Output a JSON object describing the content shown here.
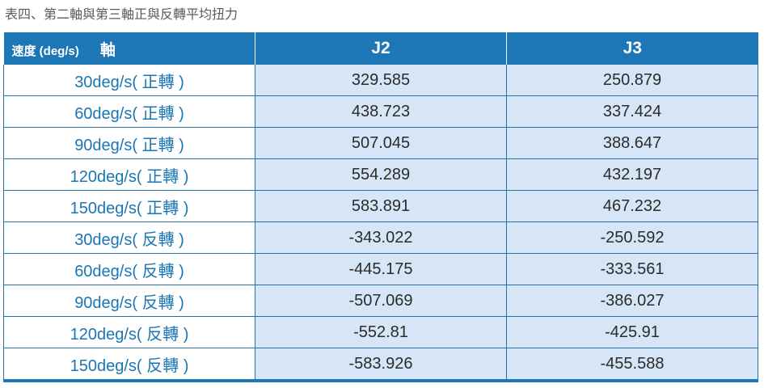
{
  "caption": "表四、第二軸與第三軸正與反轉平均扭力",
  "table": {
    "header": {
      "speed_label": "速度 (deg/s)",
      "axis_label": "軸",
      "j2": "J2",
      "j3": "J3"
    },
    "rows": [
      {
        "speed": "30deg/s( 正轉 )",
        "j2": "329.585",
        "j3": "250.879"
      },
      {
        "speed": "60deg/s( 正轉 )",
        "j2": "438.723",
        "j3": "337.424"
      },
      {
        "speed": "90deg/s( 正轉 )",
        "j2": "507.045",
        "j3": "388.647"
      },
      {
        "speed": "120deg/s( 正轉 )",
        "j2": "554.289",
        "j3": "432.197"
      },
      {
        "speed": "150deg/s( 正轉 )",
        "j2": "583.891",
        "j3": "467.232"
      },
      {
        "speed": "30deg/s( 反轉 )",
        "j2": "-343.022",
        "j3": "-250.592"
      },
      {
        "speed": "60deg/s( 反轉 )",
        "j2": "-445.175",
        "j3": "-333.561"
      },
      {
        "speed": "90deg/s( 反轉 )",
        "j2": "-507.069",
        "j3": "-386.027"
      },
      {
        "speed": "120deg/s( 反轉 )",
        "j2": "-552.81",
        "j3": "-425.91"
      },
      {
        "speed": "150deg/s( 反轉 )",
        "j2": "-583.926",
        "j3": "-455.588"
      }
    ]
  },
  "colors": {
    "header_bg": "#1d76b5",
    "value_bg": "#d7e6f6",
    "speed_text": "#1a76b4"
  }
}
